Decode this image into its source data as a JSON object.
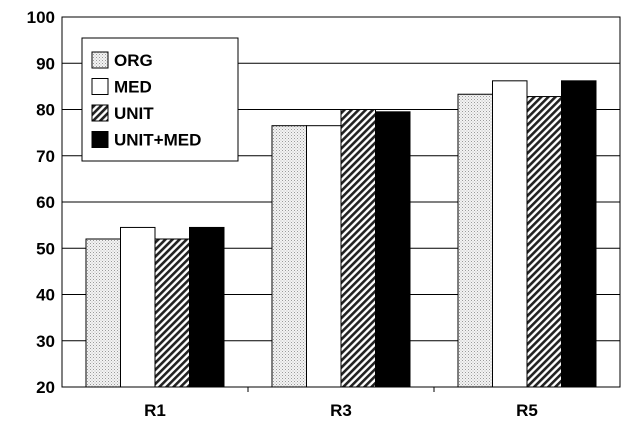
{
  "chart_data": {
    "type": "bar",
    "categories": [
      "R1",
      "R3",
      "R5"
    ],
    "series": [
      {
        "name": "ORG",
        "values": [
          52,
          76.5,
          83.3
        ],
        "pattern": "dots"
      },
      {
        "name": "MED",
        "values": [
          54.5,
          76.5,
          86.2
        ],
        "pattern": "white"
      },
      {
        "name": "UNIT",
        "values": [
          52,
          80,
          82.8
        ],
        "pattern": "diagonal"
      },
      {
        "name": "UNIT+MED",
        "values": [
          54.5,
          79.5,
          86.2
        ],
        "pattern": "black"
      }
    ],
    "ylim": [
      20,
      100
    ],
    "yticks": [
      "20",
      "30",
      "40",
      "50",
      "60",
      "70",
      "80",
      "90",
      "100"
    ],
    "grid": true,
    "legend_position": "top-left",
    "title": "",
    "xlabel": "",
    "ylabel": ""
  }
}
